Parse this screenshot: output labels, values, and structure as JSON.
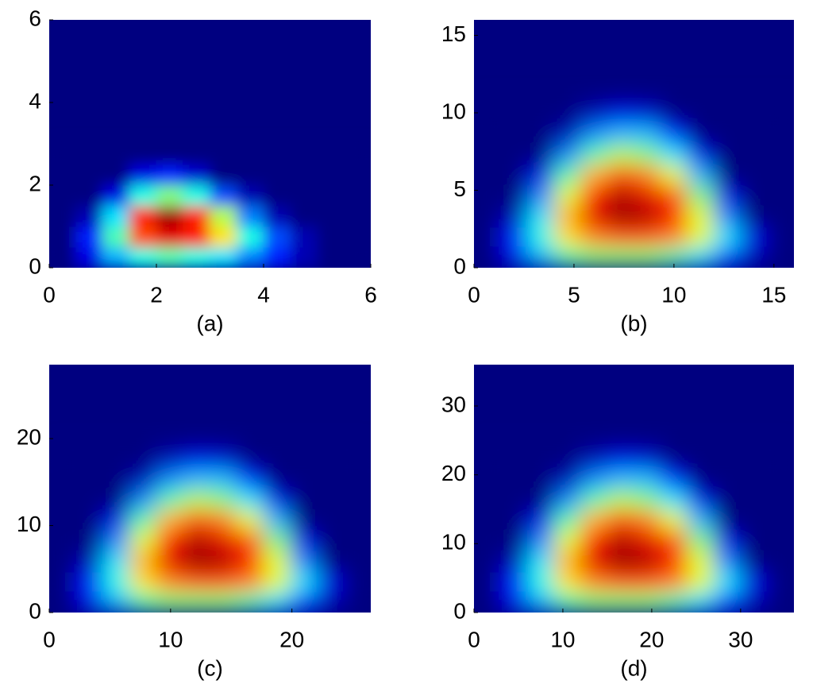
{
  "chart_data": [
    {
      "type": "heatmap",
      "xlabel": "(a)",
      "xlim": [
        0,
        6
      ],
      "ylim": [
        0,
        6
      ],
      "xticks": [
        0,
        2,
        4,
        6
      ],
      "yticks": [
        0,
        2,
        4,
        6
      ],
      "colormap": "jet",
      "z_extent": {
        "x": [
          0,
          6
        ],
        "y": [
          0,
          3
        ]
      },
      "z": [
        [
          0,
          0.1,
          0.3,
          0.4,
          0.45,
          0.4,
          0.35,
          0.25,
          0.15,
          0.05,
          0,
          0
        ],
        [
          0,
          0.15,
          0.45,
          0.8,
          0.9,
          0.85,
          0.65,
          0.4,
          0.2,
          0.05,
          0,
          0
        ],
        [
          0,
          0.05,
          0.35,
          0.85,
          0.97,
          0.85,
          0.55,
          0.25,
          0.05,
          0,
          0,
          0
        ],
        [
          0,
          0,
          0.1,
          0.4,
          0.5,
          0.4,
          0.2,
          0.05,
          0,
          0,
          0,
          0
        ],
        [
          0,
          0,
          0,
          0.1,
          0.15,
          0.08,
          0,
          0,
          0,
          0,
          0,
          0
        ],
        [
          0,
          0,
          0,
          0,
          0,
          0,
          0,
          0,
          0,
          0,
          0,
          0
        ]
      ]
    },
    {
      "type": "heatmap",
      "xlabel": "(b)",
      "xlim": [
        0,
        16
      ],
      "ylim": [
        0,
        16
      ],
      "xticks": [
        0,
        5,
        10,
        15
      ],
      "yticks": [
        0,
        5,
        10,
        15
      ],
      "colormap": "jet",
      "z_extent": {
        "x": [
          0,
          16
        ],
        "y": [
          0,
          10.7
        ]
      },
      "z": [
        [
          0,
          0.1,
          0.3,
          0.45,
          0.5,
          0.5,
          0.5,
          0.45,
          0.35,
          0.2,
          0.05,
          0
        ],
        [
          0,
          0.15,
          0.4,
          0.65,
          0.75,
          0.8,
          0.8,
          0.75,
          0.6,
          0.35,
          0.1,
          0
        ],
        [
          0,
          0.05,
          0.35,
          0.7,
          0.9,
          0.97,
          0.95,
          0.85,
          0.6,
          0.25,
          0,
          0
        ],
        [
          0,
          0,
          0.25,
          0.6,
          0.85,
          0.95,
          0.9,
          0.8,
          0.5,
          0.1,
          0,
          0
        ],
        [
          0,
          0,
          0.1,
          0.45,
          0.7,
          0.8,
          0.75,
          0.6,
          0.3,
          0,
          0,
          0
        ],
        [
          0,
          0,
          0,
          0.25,
          0.45,
          0.55,
          0.5,
          0.35,
          0.1,
          0,
          0,
          0
        ],
        [
          0,
          0,
          0,
          0.05,
          0.25,
          0.3,
          0.3,
          0.15,
          0,
          0,
          0,
          0
        ],
        [
          0,
          0,
          0,
          0,
          0.05,
          0.1,
          0.08,
          0,
          0,
          0,
          0,
          0
        ]
      ]
    },
    {
      "type": "heatmap",
      "xlabel": "(c)",
      "xlim": [
        0,
        26.5
      ],
      "ylim": [
        0,
        28.5
      ],
      "xticks": [
        0,
        10,
        20
      ],
      "yticks": [
        0,
        10,
        20
      ],
      "colormap": "jet",
      "z_extent": {
        "x": [
          0,
          26.5
        ],
        "y": [
          0,
          19
        ]
      },
      "z": [
        [
          0,
          0.1,
          0.3,
          0.45,
          0.5,
          0.5,
          0.5,
          0.45,
          0.35,
          0.2,
          0.05,
          0
        ],
        [
          0,
          0.15,
          0.4,
          0.65,
          0.75,
          0.8,
          0.8,
          0.75,
          0.6,
          0.35,
          0.1,
          0
        ],
        [
          0,
          0.05,
          0.35,
          0.7,
          0.9,
          0.97,
          0.95,
          0.85,
          0.6,
          0.25,
          0,
          0
        ],
        [
          0,
          0,
          0.25,
          0.6,
          0.85,
          0.95,
          0.9,
          0.8,
          0.5,
          0.1,
          0,
          0
        ],
        [
          0,
          0,
          0.1,
          0.45,
          0.7,
          0.8,
          0.75,
          0.6,
          0.3,
          0,
          0,
          0
        ],
        [
          0,
          0,
          0,
          0.25,
          0.45,
          0.55,
          0.5,
          0.35,
          0.1,
          0,
          0,
          0
        ],
        [
          0,
          0,
          0,
          0.05,
          0.25,
          0.3,
          0.3,
          0.15,
          0,
          0,
          0,
          0
        ],
        [
          0,
          0,
          0,
          0,
          0.05,
          0.1,
          0.08,
          0,
          0,
          0,
          0,
          0
        ]
      ]
    },
    {
      "type": "heatmap",
      "xlabel": "(d)",
      "xlim": [
        0,
        36
      ],
      "ylim": [
        0,
        36
      ],
      "xticks": [
        0,
        10,
        20,
        30
      ],
      "yticks": [
        0,
        10,
        20,
        30
      ],
      "colormap": "jet",
      "z_extent": {
        "x": [
          0,
          36
        ],
        "y": [
          0,
          24
        ]
      },
      "z": [
        [
          0,
          0.1,
          0.3,
          0.45,
          0.5,
          0.5,
          0.5,
          0.45,
          0.35,
          0.2,
          0.05,
          0
        ],
        [
          0,
          0.15,
          0.4,
          0.65,
          0.75,
          0.8,
          0.8,
          0.75,
          0.6,
          0.35,
          0.1,
          0
        ],
        [
          0,
          0.05,
          0.35,
          0.7,
          0.9,
          0.97,
          0.95,
          0.85,
          0.6,
          0.25,
          0,
          0
        ],
        [
          0,
          0,
          0.25,
          0.6,
          0.85,
          0.95,
          0.9,
          0.8,
          0.5,
          0.1,
          0,
          0
        ],
        [
          0,
          0,
          0.1,
          0.45,
          0.7,
          0.8,
          0.75,
          0.6,
          0.3,
          0,
          0,
          0
        ],
        [
          0,
          0,
          0,
          0.25,
          0.45,
          0.55,
          0.5,
          0.35,
          0.1,
          0,
          0,
          0
        ],
        [
          0,
          0,
          0,
          0.05,
          0.25,
          0.3,
          0.3,
          0.15,
          0,
          0,
          0,
          0
        ],
        [
          0,
          0,
          0,
          0,
          0.05,
          0.1,
          0.08,
          0,
          0,
          0,
          0,
          0
        ]
      ]
    }
  ]
}
